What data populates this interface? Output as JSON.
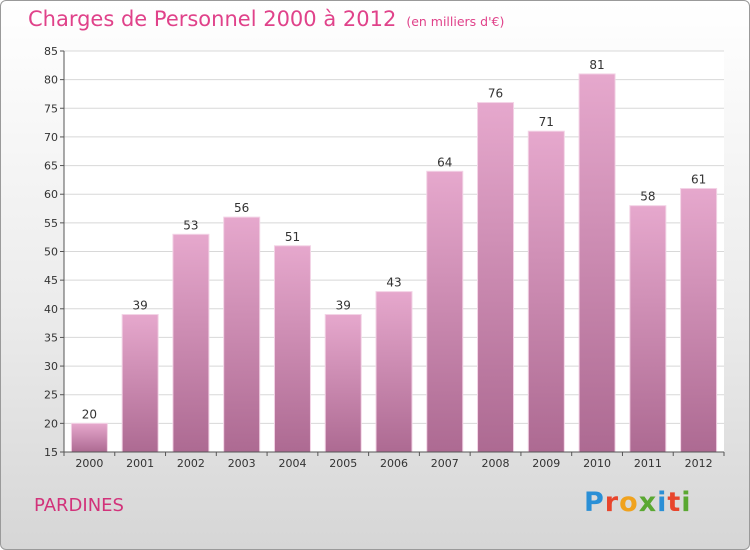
{
  "header": {
    "title": "Charges de Personnel 2000 à 2012",
    "unit": "(en milliers d'€)"
  },
  "footer": {
    "town": "PARDINES",
    "brand_letters": [
      "P",
      "r",
      "o",
      "x",
      "i",
      "t",
      "i"
    ]
  },
  "colors": {
    "bar_top": "#e6a8cd",
    "bar_bottom": "#ad6a92",
    "title": "#e0428a",
    "town": "#d2327a",
    "brand": [
      "#2a8fd6",
      "#e8452c",
      "#f0a21e",
      "#5aa832",
      "#2a8fd6",
      "#e8452c",
      "#5aa832"
    ]
  },
  "chart_data": {
    "type": "bar",
    "title": "Charges de Personnel 2000 à 2012",
    "subtitle": "(en milliers d'€)",
    "xlabel": "",
    "ylabel": "",
    "categories": [
      "2000",
      "2001",
      "2002",
      "2003",
      "2004",
      "2005",
      "2006",
      "2007",
      "2008",
      "2009",
      "2010",
      "2011",
      "2012"
    ],
    "values": [
      20,
      39,
      53,
      56,
      51,
      39,
      43,
      64,
      76,
      71,
      81,
      58,
      61
    ],
    "ylim": [
      15,
      85
    ],
    "yticks": [
      15,
      20,
      25,
      30,
      35,
      40,
      45,
      50,
      55,
      60,
      65,
      70,
      75,
      80,
      85
    ],
    "grid": true,
    "data_labels": true
  }
}
